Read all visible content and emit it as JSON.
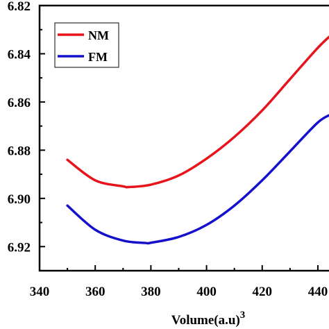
{
  "chart_data": {
    "type": "line",
    "xlabel": "Volume(a.u)",
    "xlabel_superscript": "3",
    "xlim": [
      340,
      445
    ],
    "ylim": [
      -6.93,
      -6.82
    ],
    "y_inverted": true,
    "x_ticks": [
      340,
      360,
      380,
      400,
      420,
      440
    ],
    "x_tick_labels": [
      "340",
      "360",
      "380",
      "400",
      "420",
      "440"
    ],
    "y_ticks": [
      -6.82,
      -6.84,
      -6.86,
      -6.88,
      -6.9,
      -6.92
    ],
    "y_tick_labels": [
      "6.82",
      "6.84",
      "6.86",
      "6.88",
      "6.90",
      "6.92"
    ],
    "legend_position": "top-left",
    "grid": false,
    "series": [
      {
        "name": "NM",
        "color": "#e8141c",
        "x": [
          350,
          360,
          370,
          372,
          380,
          390,
          400,
          410,
          420,
          430,
          440,
          445
        ],
        "y": [
          -6.884,
          -6.8925,
          -6.895,
          -6.8953,
          -6.8943,
          -6.8905,
          -6.8835,
          -6.8745,
          -6.8635,
          -6.8505,
          -6.8375,
          -6.832
        ]
      },
      {
        "name": "FM",
        "color": "#1410cc",
        "x": [
          350,
          360,
          370,
          378,
          380,
          390,
          400,
          410,
          420,
          430,
          440,
          445
        ],
        "y": [
          -6.903,
          -6.913,
          -6.9175,
          -6.9185,
          -6.9184,
          -6.916,
          -6.911,
          -6.903,
          -6.8925,
          -6.8805,
          -6.8685,
          -6.865
        ]
      }
    ]
  }
}
